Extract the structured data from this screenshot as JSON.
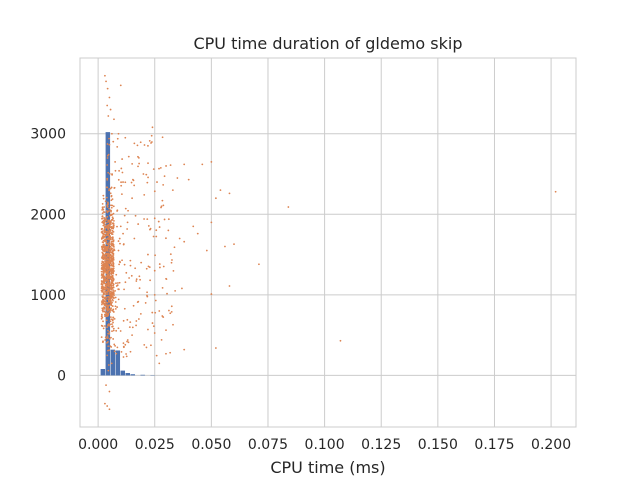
{
  "chart_data": {
    "type": "scatter",
    "title": "CPU time duration of gldemo skip",
    "xlabel": "CPU time (ms)",
    "ylabel": "",
    "xlim": [
      -0.008,
      0.211
    ],
    "ylim": [
      -640,
      3940
    ],
    "grid": true,
    "x_ticks": [
      0.0,
      0.025,
      0.05,
      0.075,
      0.1,
      0.125,
      0.15,
      0.175,
      0.2
    ],
    "x_tick_labels": [
      "0.000",
      "0.025",
      "0.050",
      "0.075",
      "0.100",
      "0.125",
      "0.150",
      "0.175",
      "0.200"
    ],
    "y_ticks": [
      0,
      1000,
      2000,
      3000
    ],
    "y_tick_labels": [
      "0",
      "1000",
      "2000",
      "3000"
    ],
    "colors": {
      "histogram": "#4c72b0",
      "scatter": "#dd8452",
      "grid": "#cccccc"
    },
    "histogram": {
      "bin_width": 0.0022,
      "bins": [
        {
          "x": 0.0022,
          "count": 80
        },
        {
          "x": 0.0044,
          "count": 3020
        },
        {
          "x": 0.0066,
          "count": 320
        },
        {
          "x": 0.0088,
          "count": 310
        },
        {
          "x": 0.011,
          "count": 60
        },
        {
          "x": 0.0132,
          "count": 30
        },
        {
          "x": 0.0154,
          "count": 15
        },
        {
          "x": 0.0198,
          "count": 8
        },
        {
          "x": 0.0242,
          "count": 4
        }
      ]
    },
    "scatter_points": [
      {
        "x": 0.003,
        "y": 3720
      },
      {
        "x": 0.0035,
        "y": 3650
      },
      {
        "x": 0.0042,
        "y": 3560
      },
      {
        "x": 0.005,
        "y": 3450
      },
      {
        "x": 0.004,
        "y": 3350
      },
      {
        "x": 0.0055,
        "y": 3300
      },
      {
        "x": 0.0045,
        "y": 3220
      },
      {
        "x": 0.007,
        "y": 3180
      },
      {
        "x": 0.009,
        "y": 3000
      },
      {
        "x": 0.012,
        "y": 2950
      },
      {
        "x": 0.024,
        "y": 3080
      },
      {
        "x": 0.01,
        "y": 3600
      },
      {
        "x": 0.016,
        "y": 2880
      },
      {
        "x": 0.018,
        "y": 2700
      },
      {
        "x": 0.02,
        "y": 2500
      },
      {
        "x": 0.022,
        "y": 2850
      },
      {
        "x": 0.026,
        "y": 2400
      },
      {
        "x": 0.03,
        "y": 2600
      },
      {
        "x": 0.032,
        "y": 2610
      },
      {
        "x": 0.035,
        "y": 2450
      },
      {
        "x": 0.038,
        "y": 2620
      },
      {
        "x": 0.04,
        "y": 2430
      },
      {
        "x": 0.046,
        "y": 2620
      },
      {
        "x": 0.05,
        "y": 2650
      },
      {
        "x": 0.052,
        "y": 2200
      },
      {
        "x": 0.054,
        "y": 2300
      },
      {
        "x": 0.058,
        "y": 2260
      },
      {
        "x": 0.084,
        "y": 2090
      },
      {
        "x": 0.202,
        "y": 2280
      },
      {
        "x": 0.033,
        "y": 2300
      },
      {
        "x": 0.028,
        "y": 2100
      },
      {
        "x": 0.025,
        "y": 1950
      },
      {
        "x": 0.031,
        "y": 1800
      },
      {
        "x": 0.036,
        "y": 1700
      },
      {
        "x": 0.038,
        "y": 1660
      },
      {
        "x": 0.042,
        "y": 1850
      },
      {
        "x": 0.044,
        "y": 1760
      },
      {
        "x": 0.05,
        "y": 1900
      },
      {
        "x": 0.056,
        "y": 1600
      },
      {
        "x": 0.06,
        "y": 1630
      },
      {
        "x": 0.048,
        "y": 1550
      },
      {
        "x": 0.071,
        "y": 1380
      },
      {
        "x": 0.058,
        "y": 1110
      },
      {
        "x": 0.05,
        "y": 1010
      },
      {
        "x": 0.025,
        "y": 1300
      },
      {
        "x": 0.03,
        "y": 1200
      },
      {
        "x": 0.034,
        "y": 1050
      },
      {
        "x": 0.037,
        "y": 1080
      },
      {
        "x": 0.022,
        "y": 1500
      },
      {
        "x": 0.019,
        "y": 1400
      },
      {
        "x": 0.016,
        "y": 1700
      },
      {
        "x": 0.015,
        "y": 2200
      },
      {
        "x": 0.013,
        "y": 1900
      },
      {
        "x": 0.011,
        "y": 2400
      },
      {
        "x": 0.027,
        "y": 800
      },
      {
        "x": 0.021,
        "y": 900
      },
      {
        "x": 0.024,
        "y": 650
      },
      {
        "x": 0.018,
        "y": 700
      },
      {
        "x": 0.015,
        "y": 500
      },
      {
        "x": 0.014,
        "y": 600
      },
      {
        "x": 0.025,
        "y": 1000
      },
      {
        "x": 0.038,
        "y": 320
      },
      {
        "x": 0.052,
        "y": 340
      },
      {
        "x": 0.107,
        "y": 430
      },
      {
        "x": 0.027,
        "y": 150
      },
      {
        "x": 0.012,
        "y": 380
      },
      {
        "x": 0.008,
        "y": 270
      },
      {
        "x": 0.006,
        "y": 150
      },
      {
        "x": 0.004,
        "y": -380
      },
      {
        "x": 0.005,
        "y": -420
      },
      {
        "x": 0.003,
        "y": -350
      },
      {
        "x": 0.005,
        "y": -200
      },
      {
        "x": 0.0035,
        "y": -120
      },
      {
        "x": 0.0045,
        "y": 60
      },
      {
        "x": 0.008,
        "y": 1250
      },
      {
        "x": 0.009,
        "y": 1550
      },
      {
        "x": 0.01,
        "y": 1850
      },
      {
        "x": 0.0095,
        "y": 1150
      },
      {
        "x": 0.0085,
        "y": 2050
      },
      {
        "x": 0.0075,
        "y": 2650
      },
      {
        "x": 0.0105,
        "y": 2250
      }
    ]
  }
}
